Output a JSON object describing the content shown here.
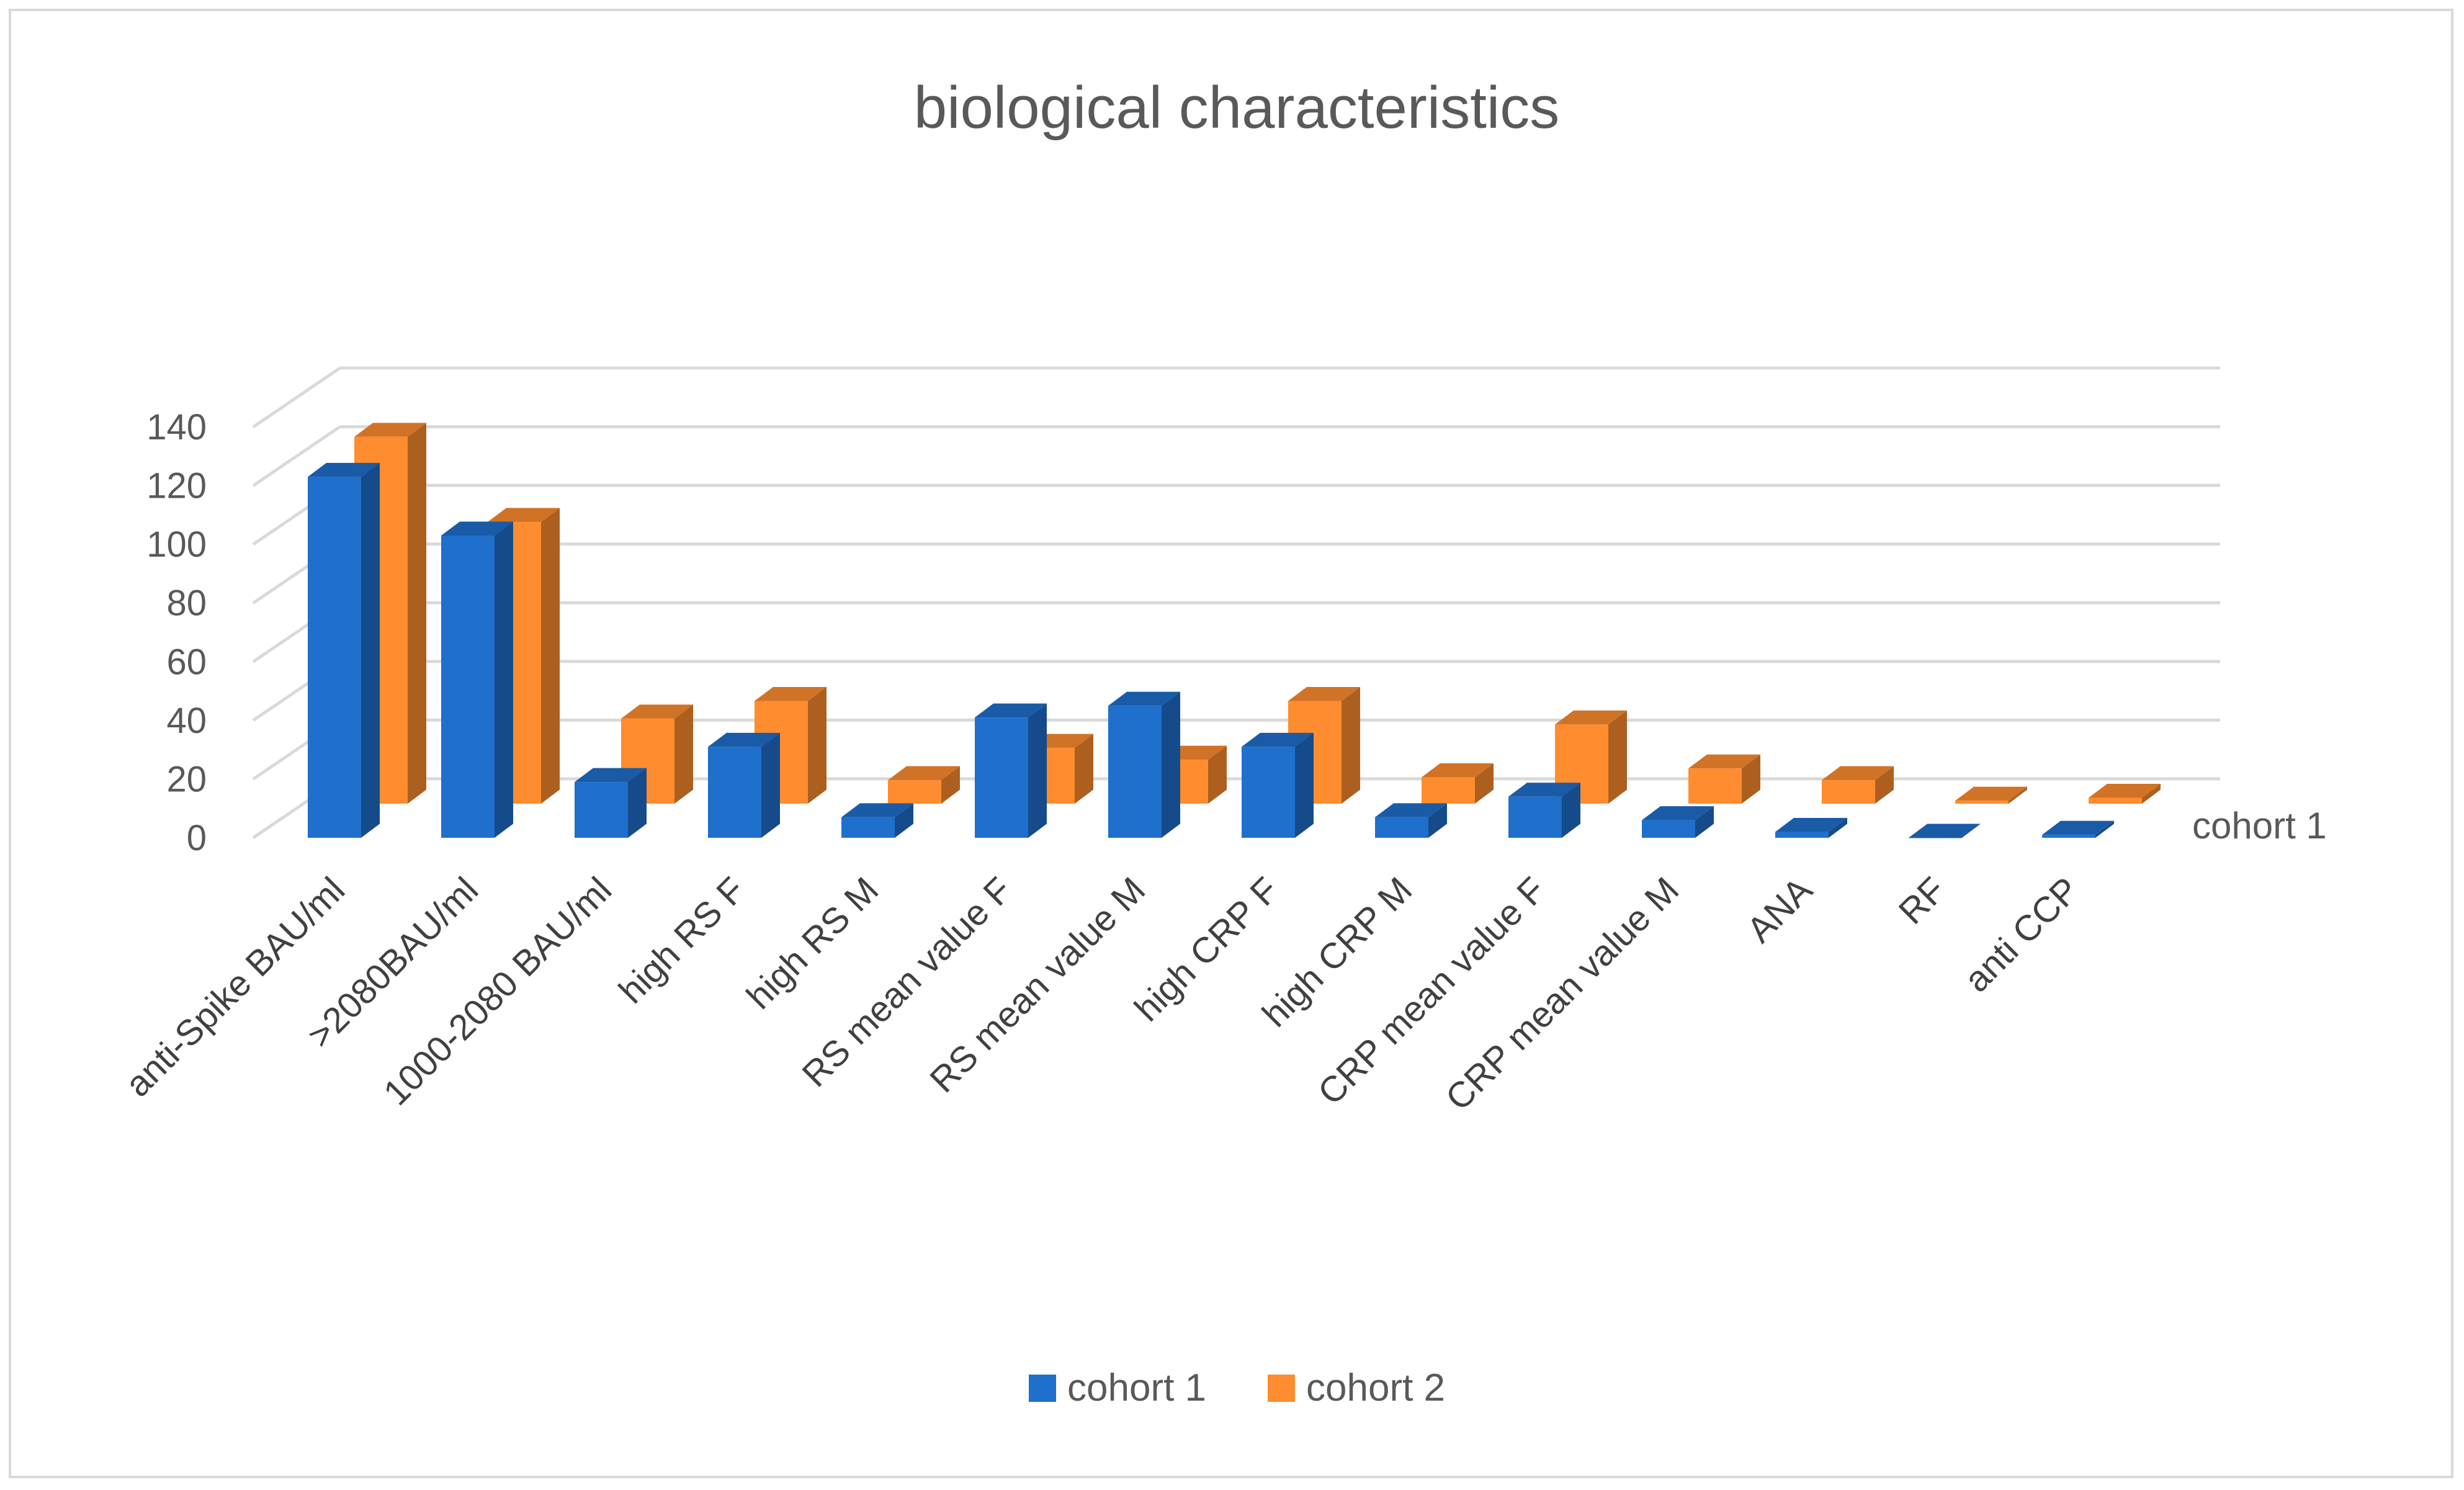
{
  "chart_data": {
    "type": "bar",
    "style": "3d-column",
    "title": "biological characteristics",
    "xlabel": "",
    "ylabel": "",
    "ylim": [
      0,
      140
    ],
    "yticks": [
      0,
      20,
      40,
      60,
      80,
      100,
      120,
      140
    ],
    "grid": true,
    "legend_position": "bottom",
    "depth_axis_labels": [
      "cohort 1"
    ],
    "categories": [
      "anti-Spike BAU/ml",
      ">2080BAU/ml",
      "1000-2080 BAU/ml",
      "high RS  F",
      "high RS M",
      "RS mean value F",
      "RS mean value M",
      "high CRP F",
      "high CRP M",
      "CRP mean value F",
      "CRP mean value M",
      "ANA",
      "RF",
      "anti CCP"
    ],
    "series": [
      {
        "name": "cohort 1",
        "color": "#1f6fcc",
        "values": [
          123,
          103,
          19,
          31,
          7,
          41,
          45,
          31,
          7,
          14,
          6,
          2,
          0,
          1
        ]
      },
      {
        "name": "cohort 2",
        "color": "#ff8c2e",
        "values": [
          125,
          96,
          29,
          35,
          8,
          19,
          15,
          35,
          9,
          27,
          12,
          8,
          1,
          2
        ]
      }
    ]
  }
}
